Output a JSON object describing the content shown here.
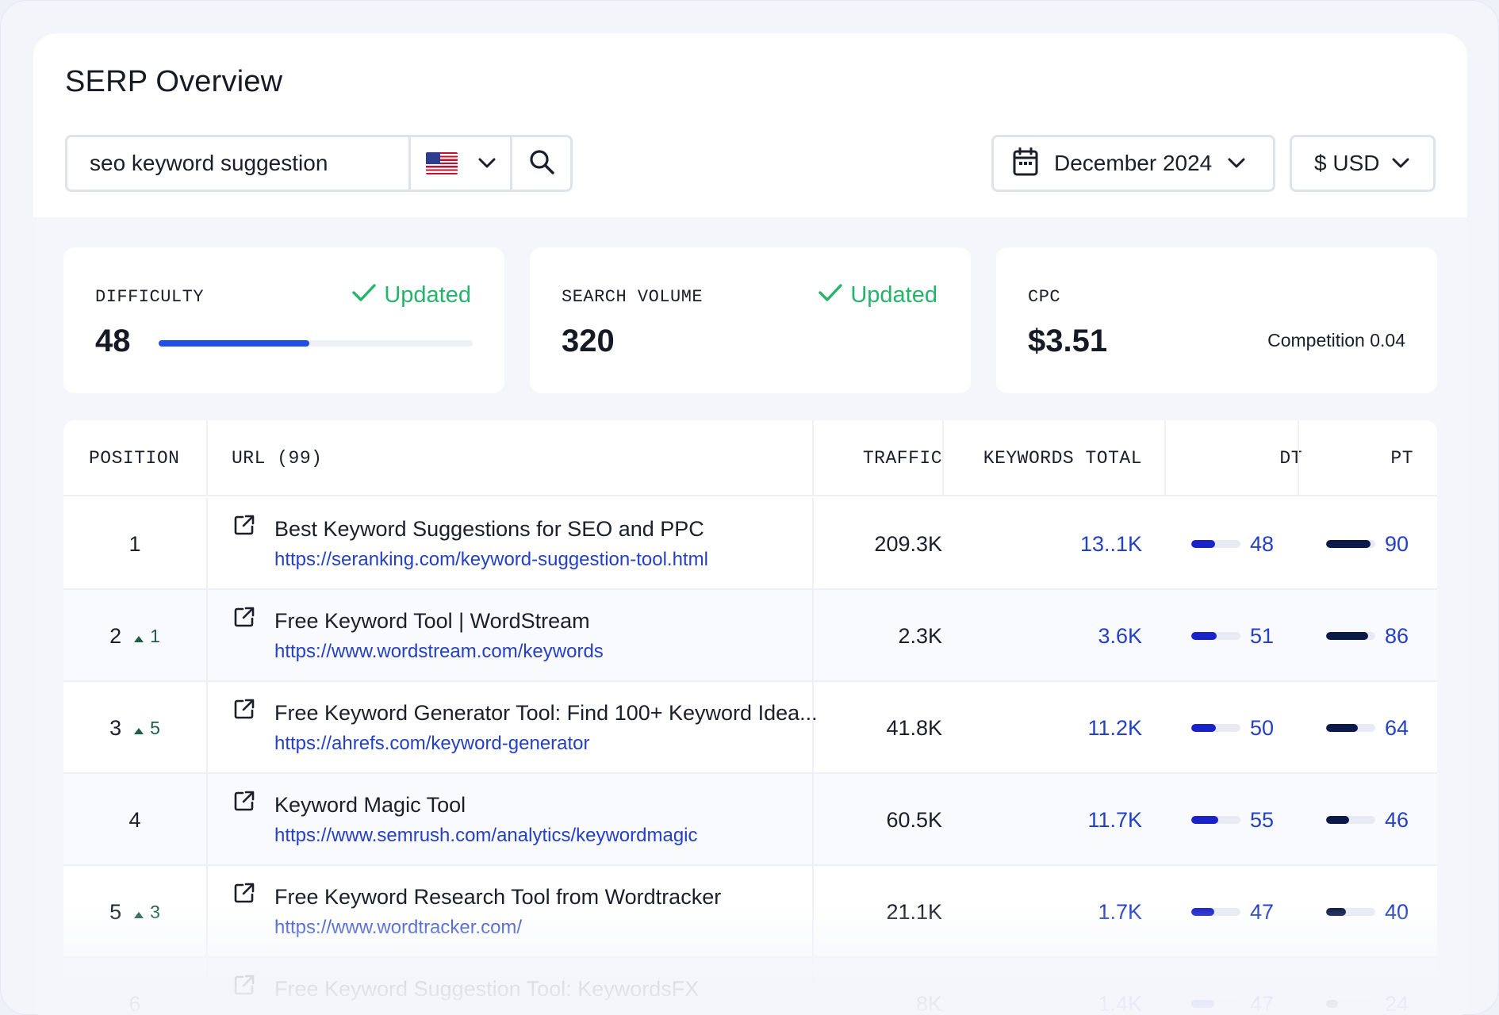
{
  "page": {
    "title": "SERP Overview"
  },
  "search": {
    "query": "seo keyword suggestion",
    "country_flag": "us-flag-icon",
    "search_icon": "search-icon"
  },
  "date_picker": {
    "label": "December 2024",
    "icon": "calendar-icon"
  },
  "currency_picker": {
    "label": "$ USD"
  },
  "metrics": {
    "difficulty": {
      "label": "DIFFICULTY",
      "status": "Updated",
      "value": "48",
      "progress": 0.48
    },
    "search_volume": {
      "label": "SEARCH VOLUME",
      "status": "Updated",
      "value": "320"
    },
    "cpc": {
      "label": "CPC",
      "value": "$3.51",
      "competition": "Competition 0.04"
    }
  },
  "table": {
    "headers": {
      "position": "POSITION",
      "url": "URL (99)",
      "traffic": "TRAFFIC",
      "keywords_total": "KEYWORDS TOTAL",
      "dt": "DT",
      "pt": "PT"
    },
    "rows": [
      {
        "position": "1",
        "change": "",
        "title": "Best Keyword Suggestions for SEO and PPC",
        "url": "https://seranking.com/keyword-suggestion-tool.html",
        "traffic": "209.3K",
        "keywords": "13..1K",
        "dt": "48",
        "dt_level": 0.48,
        "pt": "90",
        "pt_level": 0.9
      },
      {
        "position": "2",
        "change": "1",
        "title": "Free Keyword Tool | WordStream",
        "url": "https://www.wordstream.com/keywords",
        "traffic": "2.3K",
        "keywords": "3.6K",
        "dt": "51",
        "dt_level": 0.51,
        "pt": "86",
        "pt_level": 0.86
      },
      {
        "position": "3",
        "change": "5",
        "title": "Free Keyword Generator Tool: Find 100+ Keyword Idea...",
        "url": "https://ahrefs.com/keyword-generator",
        "traffic": "41.8K",
        "keywords": "11.2K",
        "dt": "50",
        "dt_level": 0.5,
        "pt": "64",
        "pt_level": 0.64
      },
      {
        "position": "4",
        "change": "",
        "title": "Keyword Magic Tool",
        "url": "https://www.semrush.com/analytics/keywordmagic",
        "traffic": "60.5K",
        "keywords": "11.7K",
        "dt": "55",
        "dt_level": 0.55,
        "pt": "46",
        "pt_level": 0.46
      },
      {
        "position": "5",
        "change": "3",
        "title": "Free Keyword Research Tool from Wordtracker",
        "url": "https://www.wordtracker.com/",
        "traffic": "21.1K",
        "keywords": "1.7K",
        "dt": "47",
        "dt_level": 0.47,
        "pt": "40",
        "pt_level": 0.4
      },
      {
        "position": "6",
        "change": "",
        "title": "Free Keyword Suggestion Tool: KeywordsFX",
        "url": "",
        "traffic": "8K",
        "keywords": "1.4K",
        "dt": "47",
        "dt_level": 0.47,
        "pt": "24",
        "pt_level": 0.24
      }
    ]
  },
  "colors": {
    "accent_blue": "#1f4fe6",
    "link_blue": "#2440c4",
    "updated_green": "#26b46b",
    "pt_bar": "#0c1a4a",
    "dt_bar": "#1a22c9"
  }
}
